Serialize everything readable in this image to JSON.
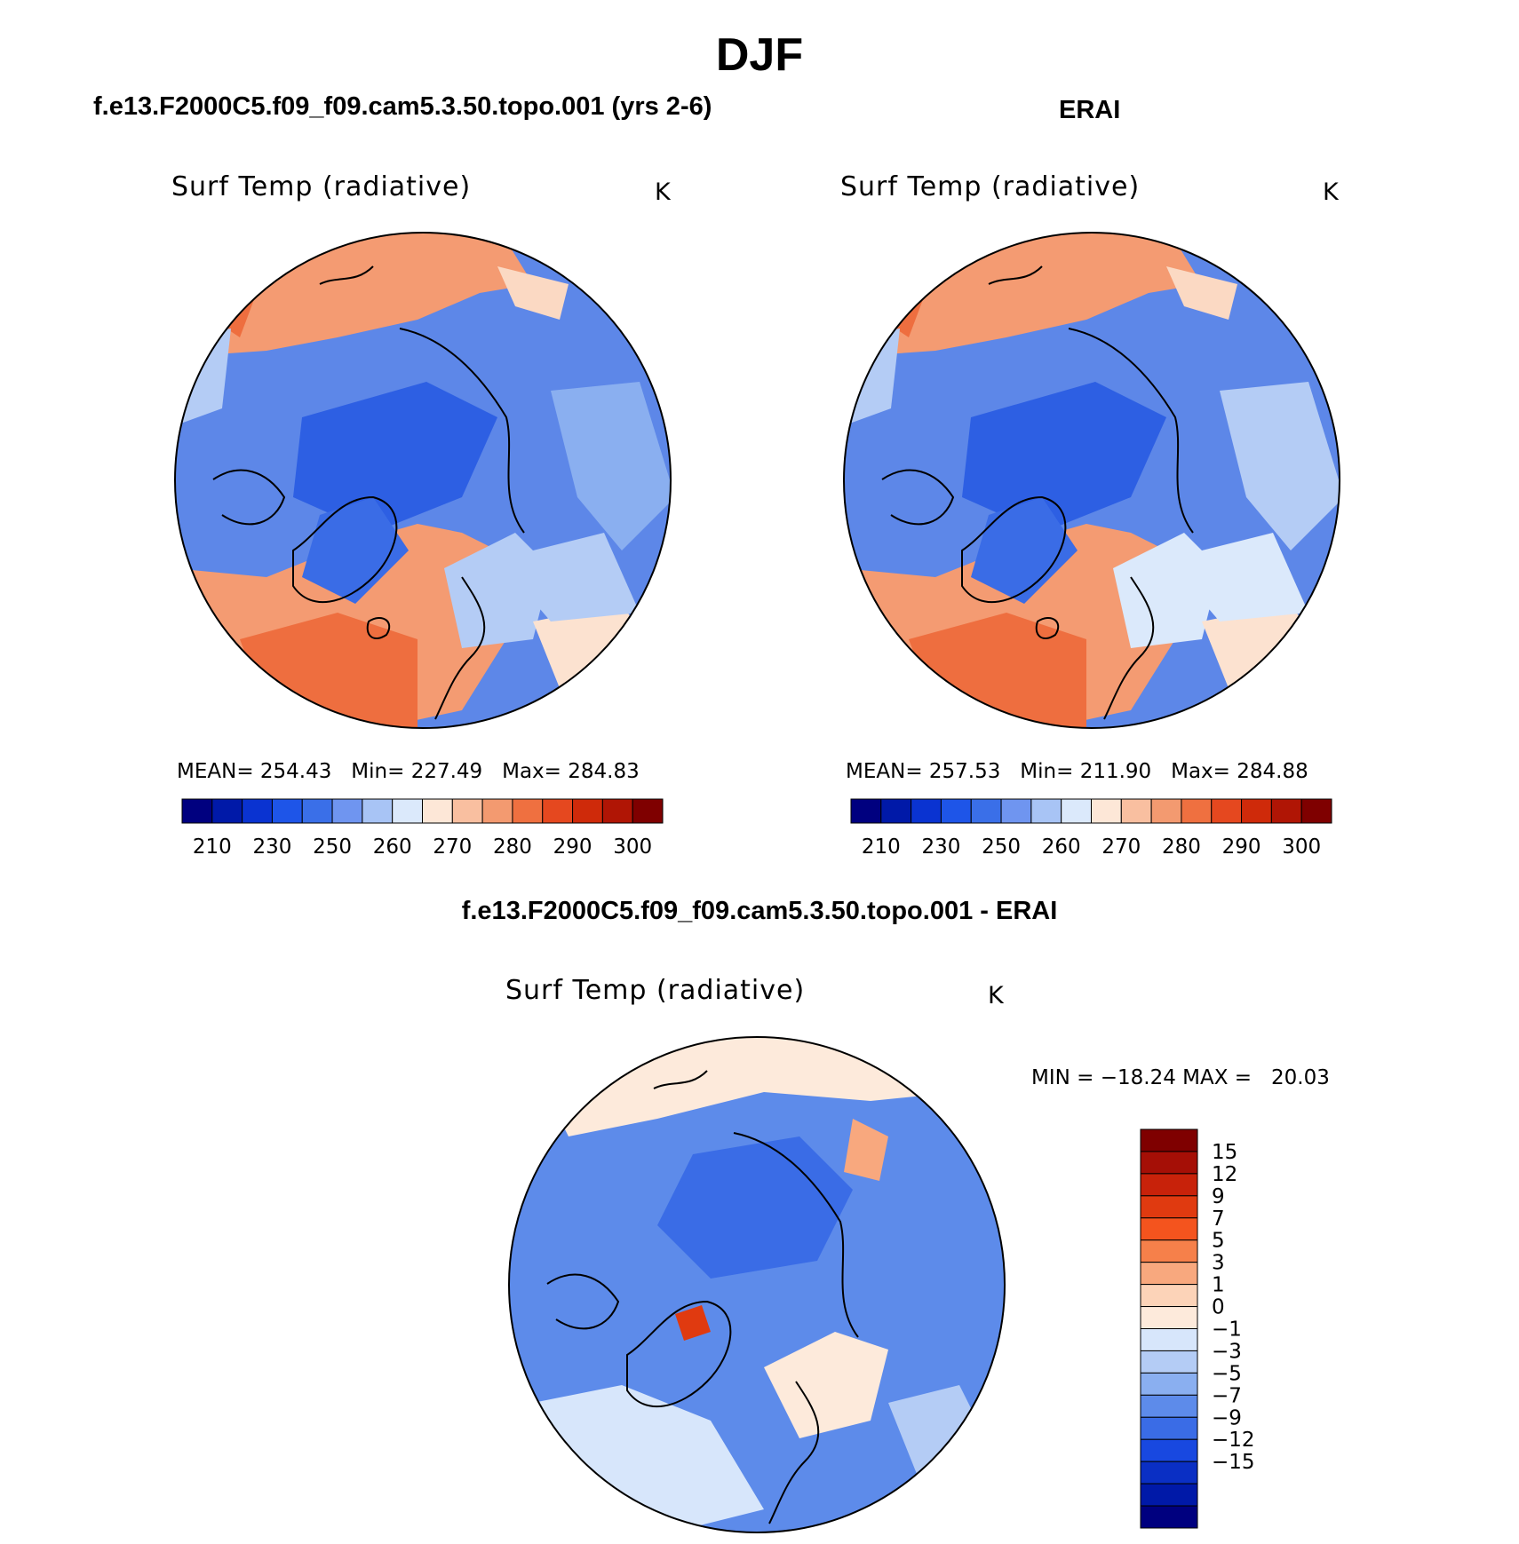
{
  "page": {
    "season": "DJF",
    "left_heading": "f.e13.F2000C5.f09_f09.cam5.3.50.topo.001 (yrs 2-6)",
    "right_heading": "ERAI",
    "diff_heading": "f.e13.F2000C5.f09_f09.cam5.3.50.topo.001 - ERAI"
  },
  "panels": [
    {
      "variable": "Surf Temp (radiative)",
      "units": "K",
      "stats": "MEAN= 254.43   Min= 227.49   Max= 284.83"
    },
    {
      "variable": "Surf Temp (radiative)",
      "units": "K",
      "stats": "MEAN= 257.53   Min= 211.90   Max= 284.88"
    }
  ],
  "diff_panel": {
    "variable": "Surf Temp (radiative)",
    "units": "K",
    "stats": "MIN = −18.24 MAX =   20.03"
  },
  "colorbar_abs": {
    "colors": [
      "#00007f",
      "#0019a8",
      "#0a33d1",
      "#1e55e8",
      "#3a6fe8",
      "#6f95f0",
      "#a8c4f5",
      "#dbe9fb",
      "#fde7d7",
      "#f9bfa0",
      "#f39a70",
      "#ef7040",
      "#e5481f",
      "#cf2a0a",
      "#b01505",
      "#7f0000"
    ],
    "labels": [
      "210",
      "230",
      "250",
      "260",
      "270",
      "280",
      "290",
      "300"
    ]
  },
  "colorbar_diff": {
    "colors": [
      "#7f0000",
      "#a50f06",
      "#c8220a",
      "#e03a10",
      "#f4541e",
      "#f6804a",
      "#f8a87e",
      "#fcd3b8",
      "#fdeadb",
      "#d7e6fb",
      "#b4ccf5",
      "#8aaff0",
      "#5d8bea",
      "#3a6ce6",
      "#1848e0",
      "#0a2fc4",
      "#0019a8",
      "#00007f"
    ],
    "labels": [
      "15",
      "12",
      "9",
      "7",
      "5",
      "3",
      "1",
      "0",
      "−1",
      "−3",
      "−5",
      "−7",
      "−9",
      "−12",
      "−15"
    ]
  }
}
